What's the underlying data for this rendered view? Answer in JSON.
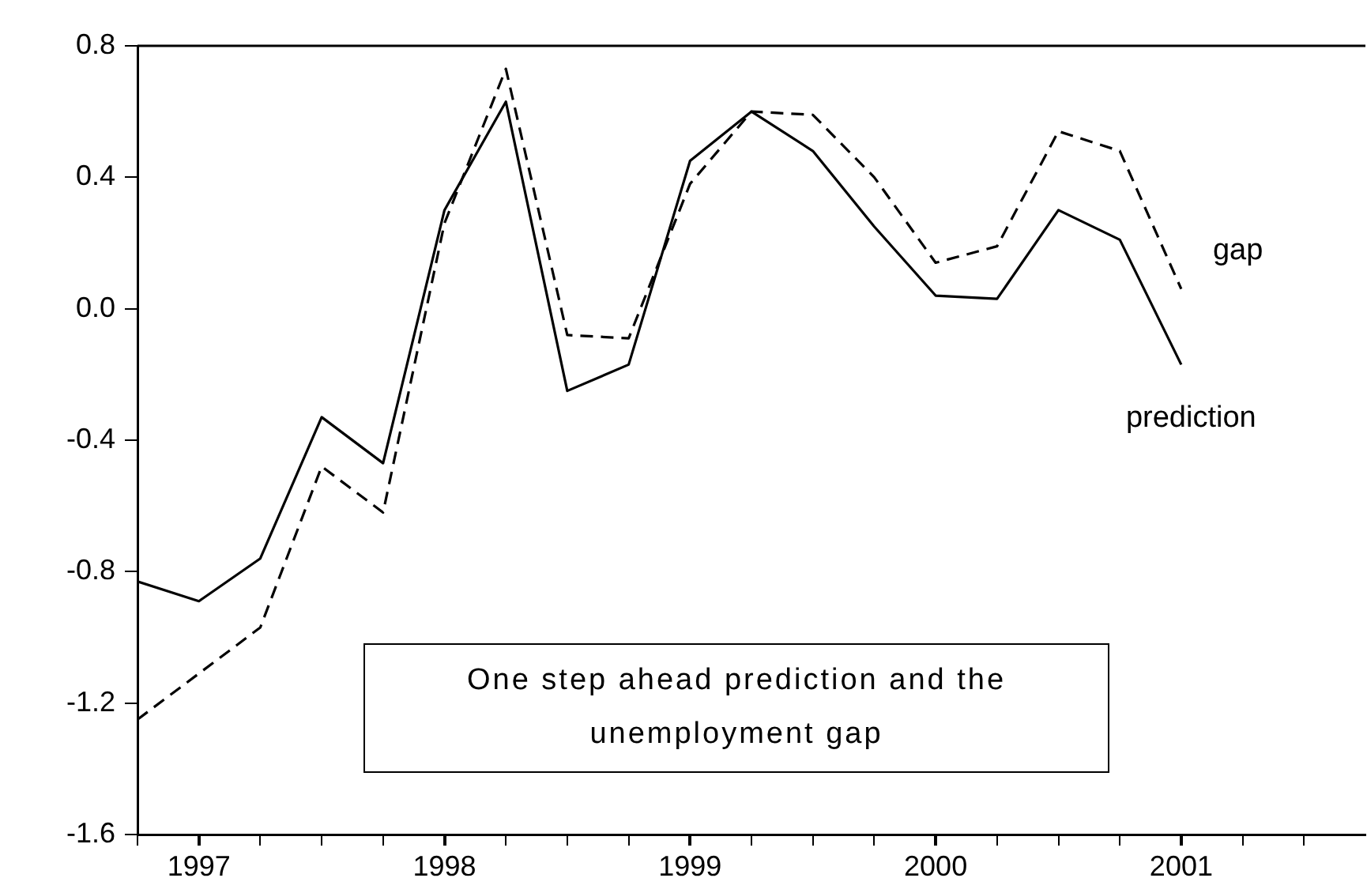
{
  "chart_data": {
    "type": "line",
    "x": [
      1996.75,
      1997,
      1997.25,
      1997.5,
      1997.75,
      1998,
      1998.25,
      1998.5,
      1998.75,
      1999,
      1999.25,
      1999.5,
      1999.75,
      2000,
      2000.25,
      2000.5,
      2000.75,
      2001
    ],
    "series": [
      {
        "name": "prediction",
        "color": "#000000",
        "line_style": "solid",
        "values": [
          -0.83,
          -0.89,
          -0.76,
          -0.33,
          -0.47,
          0.3,
          0.63,
          -0.25,
          -0.17,
          0.45,
          0.6,
          0.48,
          0.25,
          0.04,
          0.03,
          0.3,
          0.21,
          -0.17
        ]
      },
      {
        "name": "gap",
        "color": "#000000",
        "line_style": "dashed",
        "values": [
          -1.25,
          -1.11,
          -0.97,
          -0.48,
          -0.62,
          0.26,
          0.73,
          -0.08,
          -0.09,
          0.38,
          0.6,
          0.59,
          0.4,
          0.14,
          0.19,
          0.54,
          0.48,
          0.06
        ]
      }
    ],
    "xlim": [
      1996.75,
      2001.75
    ],
    "xticks": [
      {
        "value": 1996.75,
        "label": null
      },
      {
        "value": 1997,
        "label": "1997"
      },
      {
        "value": 1997.25,
        "label": null
      },
      {
        "value": 1997.5,
        "label": null
      },
      {
        "value": 1997.75,
        "label": null
      },
      {
        "value": 1998,
        "label": "1998"
      },
      {
        "value": 1998.25,
        "label": null
      },
      {
        "value": 1998.5,
        "label": null
      },
      {
        "value": 1998.75,
        "label": null
      },
      {
        "value": 1999,
        "label": "1999"
      },
      {
        "value": 1999.25,
        "label": null
      },
      {
        "value": 1999.5,
        "label": null
      },
      {
        "value": 1999.75,
        "label": null
      },
      {
        "value": 2000,
        "label": "2000"
      },
      {
        "value": 2000.25,
        "label": null
      },
      {
        "value": 2000.5,
        "label": null
      },
      {
        "value": 2000.75,
        "label": null
      },
      {
        "value": 2001,
        "label": "2001"
      },
      {
        "value": 2001.25,
        "label": null
      },
      {
        "value": 2001.5,
        "label": null
      }
    ],
    "ylim": [
      -1.6,
      0.8
    ],
    "yticks": [
      -1.6,
      -1.2,
      -0.8,
      -0.4,
      {
        "value": 0,
        "label": "0.0"
      },
      0.4,
      0.8
    ],
    "annotations": [
      "One step ahead prediction and the unemployment gap"
    ],
    "legend": false,
    "grid": false,
    "marker": "none"
  }
}
